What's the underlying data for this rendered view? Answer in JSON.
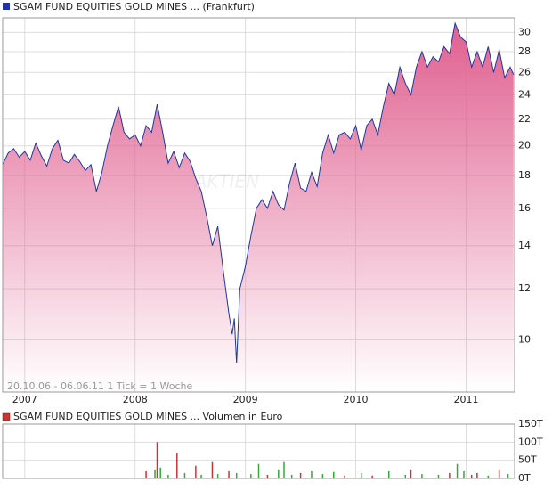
{
  "chart_data": [
    {
      "type": "line",
      "log_scale": true,
      "grid": true,
      "subtitle": "20.10.06 - 06.06.11   1 Tick = 1 Woche",
      "watermark": "AKTIEN",
      "x": [
        2006.8,
        2006.85,
        2006.9,
        2006.95,
        2007.0,
        2007.05,
        2007.1,
        2007.15,
        2007.2,
        2007.25,
        2007.3,
        2007.35,
        2007.4,
        2007.45,
        2007.5,
        2007.55,
        2007.6,
        2007.65,
        2007.7,
        2007.75,
        2007.8,
        2007.85,
        2007.9,
        2007.95,
        2008.0,
        2008.05,
        2008.1,
        2008.15,
        2008.2,
        2008.25,
        2008.3,
        2008.35,
        2008.4,
        2008.45,
        2008.5,
        2008.55,
        2008.6,
        2008.65,
        2008.7,
        2008.75,
        2008.8,
        2008.85,
        2008.88,
        2008.9,
        2008.92,
        2008.95,
        2009.0,
        2009.05,
        2009.1,
        2009.15,
        2009.2,
        2009.25,
        2009.3,
        2009.35,
        2009.4,
        2009.45,
        2009.5,
        2009.55,
        2009.6,
        2009.65,
        2009.7,
        2009.75,
        2009.8,
        2009.85,
        2009.9,
        2009.95,
        2010.0,
        2010.05,
        2010.1,
        2010.15,
        2010.2,
        2010.25,
        2010.3,
        2010.35,
        2010.4,
        2010.45,
        2010.5,
        2010.55,
        2010.6,
        2010.65,
        2010.7,
        2010.75,
        2010.8,
        2010.85,
        2010.9,
        2010.95,
        2011.0,
        2011.05,
        2011.1,
        2011.15,
        2011.2,
        2011.25,
        2011.3,
        2011.35,
        2011.4,
        2011.43
      ],
      "series": [
        {
          "name": "SGAM FUND EQUITIES GOLD MINES ... (Frankfurt)",
          "color": "#1f35a0",
          "fill": "#e0608f",
          "values": [
            18.7,
            19.5,
            19.8,
            19.2,
            19.6,
            19.0,
            20.2,
            19.3,
            18.6,
            19.8,
            20.4,
            19.0,
            18.8,
            19.4,
            18.9,
            18.3,
            18.7,
            17.0,
            18.2,
            20.0,
            21.5,
            23.0,
            21.0,
            20.5,
            20.8,
            20.0,
            21.5,
            21.0,
            23.2,
            21.0,
            18.8,
            19.6,
            18.5,
            19.5,
            18.9,
            17.8,
            17.0,
            15.5,
            14.0,
            15.0,
            12.8,
            11.0,
            10.2,
            10.8,
            9.2,
            12.0,
            13.0,
            14.5,
            16.0,
            16.5,
            16.0,
            17.0,
            16.2,
            15.9,
            17.5,
            18.8,
            17.2,
            17.0,
            18.2,
            17.3,
            19.5,
            20.8,
            19.5,
            20.8,
            21.0,
            20.5,
            21.5,
            19.7,
            21.5,
            22.0,
            20.8,
            23.0,
            25.0,
            24.0,
            26.5,
            25.0,
            24.0,
            26.5,
            28.0,
            26.5,
            27.5,
            27.0,
            28.5,
            27.8,
            31.0,
            29.5,
            29.0,
            26.5,
            28.0,
            26.5,
            28.5,
            26.0,
            28.2,
            25.5,
            26.5,
            25.8
          ]
        }
      ],
      "xlim": [
        2006.8,
        2011.44
      ],
      "xticks": [
        2007,
        2008,
        2009,
        2010,
        2011
      ],
      "ylim": [
        8.3,
        31.6
      ],
      "yticks": [
        10,
        12,
        14,
        16,
        18,
        20,
        22,
        24,
        26,
        28,
        30
      ]
    },
    {
      "type": "bar",
      "grid": true,
      "legend": "SGAM FUND EQUITIES GOLD MINES ... Volumen in Euro",
      "x": [
        2008.1,
        2008.18,
        2008.2,
        2008.23,
        2008.3,
        2008.38,
        2008.45,
        2008.55,
        2008.6,
        2008.7,
        2008.75,
        2008.85,
        2008.92,
        2009.05,
        2009.12,
        2009.2,
        2009.3,
        2009.35,
        2009.42,
        2009.5,
        2009.6,
        2009.7,
        2009.8,
        2009.9,
        2010.05,
        2010.15,
        2010.3,
        2010.45,
        2010.5,
        2010.6,
        2010.75,
        2010.85,
        2010.92,
        2010.98,
        2011.05,
        2011.1,
        2011.2,
        2011.3,
        2011.38
      ],
      "values": [
        20,
        25,
        100,
        30,
        10,
        70,
        15,
        35,
        10,
        45,
        12,
        20,
        15,
        12,
        40,
        10,
        25,
        45,
        10,
        15,
        20,
        12,
        18,
        8,
        15,
        8,
        20,
        10,
        25,
        12,
        10,
        15,
        40,
        20,
        10,
        15,
        8,
        25,
        12
      ],
      "colors": [
        "#cc3333",
        "#33aa33",
        "#cc3333",
        "#33aa33",
        "#33aa33",
        "#cc3333",
        "#33aa33",
        "#cc3333",
        "#33aa33",
        "#cc3333",
        "#33aa33",
        "#cc3333",
        "#33aa33",
        "#33aa33",
        "#33aa33",
        "#cc3333",
        "#33aa33",
        "#33aa33",
        "#33aa33",
        "#cc3333",
        "#33aa33",
        "#33aa33",
        "#33aa33",
        "#cc3333",
        "#33aa33",
        "#cc3333",
        "#33aa33",
        "#33aa33",
        "#cc3333",
        "#33aa33",
        "#33aa33",
        "#cc3333",
        "#33aa33",
        "#33aa33",
        "#cc3333",
        "#cc3333",
        "#33aa33",
        "#cc3333",
        "#33aa33"
      ],
      "xlim": [
        2006.8,
        2011.44
      ],
      "xticks": [
        2007,
        2008,
        2009,
        2010,
        2011
      ],
      "ylim": [
        0,
        150
      ],
      "yticks": [
        {
          "value": 0,
          "label": "0T"
        },
        {
          "value": 50,
          "label": "50T"
        },
        {
          "value": 100,
          "label": "100T"
        },
        {
          "value": 150,
          "label": "150T"
        }
      ]
    }
  ]
}
